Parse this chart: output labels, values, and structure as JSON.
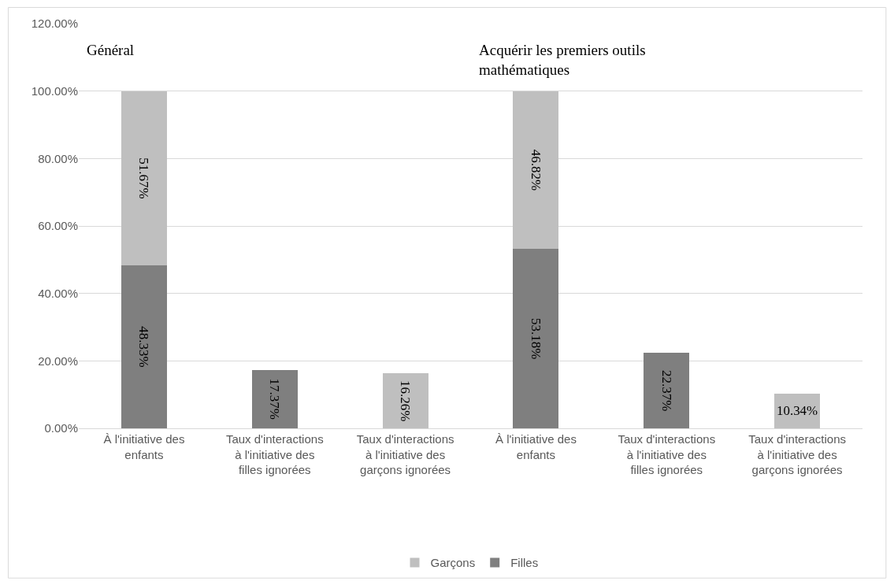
{
  "chart_data": {
    "type": "bar",
    "stacked": true,
    "categories": [
      "À l'initiative des enfants",
      "Taux d'interactions à l'initiative des filles ignorées",
      "Taux d'interactions à l'initiative des garçons ignorées",
      "À l'initiative des enfants",
      "Taux d'interactions à l'initiative des filles ignorées",
      "Taux d'interactions à l'initiative des garçons ignorées"
    ],
    "series": [
      {
        "name": "Filles",
        "color": "#7f7f7f",
        "values": [
          48.33,
          17.37,
          null,
          53.18,
          22.37,
          null
        ],
        "value_labels": [
          "48.33%",
          "17.37%",
          null,
          "53.18%",
          "22.37%",
          null
        ]
      },
      {
        "name": "Garçons",
        "color": "#bfbfbf",
        "values": [
          51.67,
          null,
          16.26,
          46.82,
          null,
          10.34
        ],
        "value_labels": [
          "51.67%",
          null,
          "16.26%",
          "46.82%",
          null,
          "10.34%"
        ]
      }
    ],
    "ylim": [
      0,
      120
    ],
    "yticks": [
      {
        "value": 0,
        "label": "0.00%"
      },
      {
        "value": 20,
        "label": "20.00%"
      },
      {
        "value": 40,
        "label": "40.00%"
      },
      {
        "value": 60,
        "label": "60.00%"
      },
      {
        "value": 80,
        "label": "80.00%"
      },
      {
        "value": 100,
        "label": "100.00%"
      },
      {
        "value": 120,
        "label": "120.00%"
      }
    ],
    "annotations": [
      "Général",
      "Acquérir les premiers outils mathématiques"
    ],
    "grid": "y",
    "legend": "bottom"
  }
}
